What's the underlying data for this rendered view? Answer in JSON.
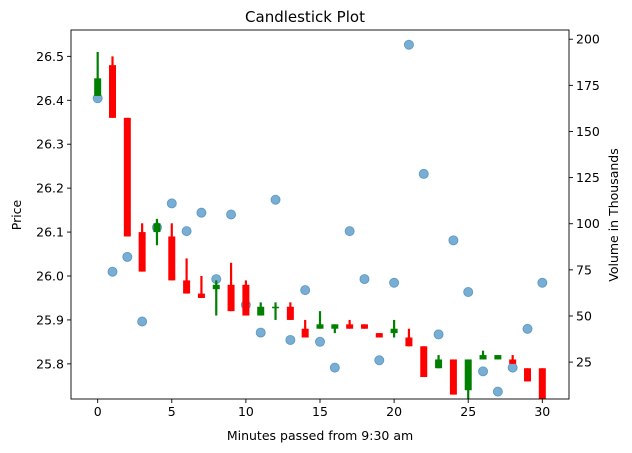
{
  "chart_data": {
    "type": "candlestick",
    "title": "Candlestick Plot",
    "xlabel": "Minutes passed from 9:30 am",
    "ylabel_left": "Price",
    "ylabel_right": "Volume in Thousands",
    "xlim": [
      -1.8,
      31.8
    ],
    "ylim_price": [
      25.72,
      26.56
    ],
    "ylim_volume": [
      5,
      205
    ],
    "x_ticks": [
      0,
      5,
      10,
      15,
      20,
      25,
      30
    ],
    "price_ticks": [
      25.8,
      25.9,
      26.0,
      26.1,
      26.2,
      26.3,
      26.4,
      26.5
    ],
    "volume_ticks": [
      25,
      50,
      75,
      100,
      125,
      150,
      175,
      200
    ],
    "grid": false,
    "colors": {
      "up": "#008000",
      "down": "#ff0000",
      "volume": "#1f77b4"
    },
    "candles": [
      {
        "x": 0,
        "open": 26.41,
        "close": 26.45,
        "high": 26.51,
        "low": 26.41
      },
      {
        "x": 1,
        "open": 26.48,
        "close": 26.36,
        "high": 26.5,
        "low": 26.36
      },
      {
        "x": 2,
        "open": 26.36,
        "close": 26.09,
        "high": 26.36,
        "low": 26.09
      },
      {
        "x": 3,
        "open": 26.1,
        "close": 26.01,
        "high": 26.12,
        "low": 26.01
      },
      {
        "x": 4,
        "open": 26.1,
        "close": 26.12,
        "high": 26.13,
        "low": 26.07
      },
      {
        "x": 5,
        "open": 26.09,
        "close": 25.99,
        "high": 26.12,
        "low": 25.99
      },
      {
        "x": 6,
        "open": 25.99,
        "close": 25.96,
        "high": 26.04,
        "low": 25.96
      },
      {
        "x": 7,
        "open": 25.96,
        "close": 25.95,
        "high": 26.0,
        "low": 25.95
      },
      {
        "x": 8,
        "open": 25.97,
        "close": 25.98,
        "high": 25.99,
        "low": 25.91
      },
      {
        "x": 9,
        "open": 25.98,
        "close": 25.92,
        "high": 26.03,
        "low": 25.92
      },
      {
        "x": 10,
        "open": 25.98,
        "close": 25.91,
        "high": 25.99,
        "low": 25.91
      },
      {
        "x": 11,
        "open": 25.91,
        "close": 25.93,
        "high": 25.94,
        "low": 25.91
      },
      {
        "x": 12,
        "open": 25.93,
        "close": 25.93,
        "high": 25.94,
        "low": 25.9
      },
      {
        "x": 13,
        "open": 25.93,
        "close": 25.9,
        "high": 25.94,
        "low": 25.9
      },
      {
        "x": 14,
        "open": 25.88,
        "close": 25.86,
        "high": 25.9,
        "low": 25.86
      },
      {
        "x": 15,
        "open": 25.88,
        "close": 25.89,
        "high": 25.92,
        "low": 25.88
      },
      {
        "x": 16,
        "open": 25.88,
        "close": 25.89,
        "high": 25.89,
        "low": 25.87
      },
      {
        "x": 17,
        "open": 25.89,
        "close": 25.88,
        "high": 25.9,
        "low": 25.88
      },
      {
        "x": 18,
        "open": 25.89,
        "close": 25.88,
        "high": 25.89,
        "low": 25.88
      },
      {
        "x": 19,
        "open": 25.87,
        "close": 25.86,
        "high": 25.87,
        "low": 25.86
      },
      {
        "x": 20,
        "open": 25.87,
        "close": 25.88,
        "high": 25.9,
        "low": 25.86
      },
      {
        "x": 21,
        "open": 25.86,
        "close": 25.84,
        "high": 25.88,
        "low": 25.84
      },
      {
        "x": 22,
        "open": 25.84,
        "close": 25.77,
        "high": 25.84,
        "low": 25.77
      },
      {
        "x": 23,
        "open": 25.79,
        "close": 25.81,
        "high": 25.82,
        "low": 25.79
      },
      {
        "x": 24,
        "open": 25.81,
        "close": 25.73,
        "high": 25.81,
        "low": 25.73
      },
      {
        "x": 25,
        "open": 25.74,
        "close": 25.81,
        "high": 25.81,
        "low": 25.72
      },
      {
        "x": 26,
        "open": 25.81,
        "close": 25.82,
        "high": 25.83,
        "low": 25.81
      },
      {
        "x": 27,
        "open": 25.81,
        "close": 25.82,
        "high": 25.82,
        "low": 25.81
      },
      {
        "x": 28,
        "open": 25.81,
        "close": 25.8,
        "high": 25.82,
        "low": 25.8
      },
      {
        "x": 29,
        "open": 25.79,
        "close": 25.76,
        "high": 25.79,
        "low": 25.76
      },
      {
        "x": 30,
        "open": 25.79,
        "close": 25.72,
        "high": 25.79,
        "low": 25.72
      }
    ],
    "volume": [
      {
        "x": 0,
        "v": 168
      },
      {
        "x": 1,
        "v": 74
      },
      {
        "x": 2,
        "v": 82
      },
      {
        "x": 3,
        "v": 47
      },
      {
        "x": 4,
        "v": 98
      },
      {
        "x": 5,
        "v": 111
      },
      {
        "x": 6,
        "v": 96
      },
      {
        "x": 7,
        "v": 106
      },
      {
        "x": 8,
        "v": 70
      },
      {
        "x": 9,
        "v": 105
      },
      {
        "x": 10,
        "v": 56
      },
      {
        "x": 11,
        "v": 41
      },
      {
        "x": 12,
        "v": 113
      },
      {
        "x": 13,
        "v": 37
      },
      {
        "x": 14,
        "v": 64
      },
      {
        "x": 15,
        "v": 36
      },
      {
        "x": 16,
        "v": 22
      },
      {
        "x": 17,
        "v": 96
      },
      {
        "x": 18,
        "v": 70
      },
      {
        "x": 19,
        "v": 26
      },
      {
        "x": 20,
        "v": 68
      },
      {
        "x": 21,
        "v": 197
      },
      {
        "x": 22,
        "v": 127
      },
      {
        "x": 23,
        "v": 40
      },
      {
        "x": 24,
        "v": 91
      },
      {
        "x": 25,
        "v": 63
      },
      {
        "x": 26,
        "v": 20
      },
      {
        "x": 27,
        "v": 9
      },
      {
        "x": 28,
        "v": 22
      },
      {
        "x": 29,
        "v": 43
      },
      {
        "x": 30,
        "v": 68
      }
    ]
  }
}
